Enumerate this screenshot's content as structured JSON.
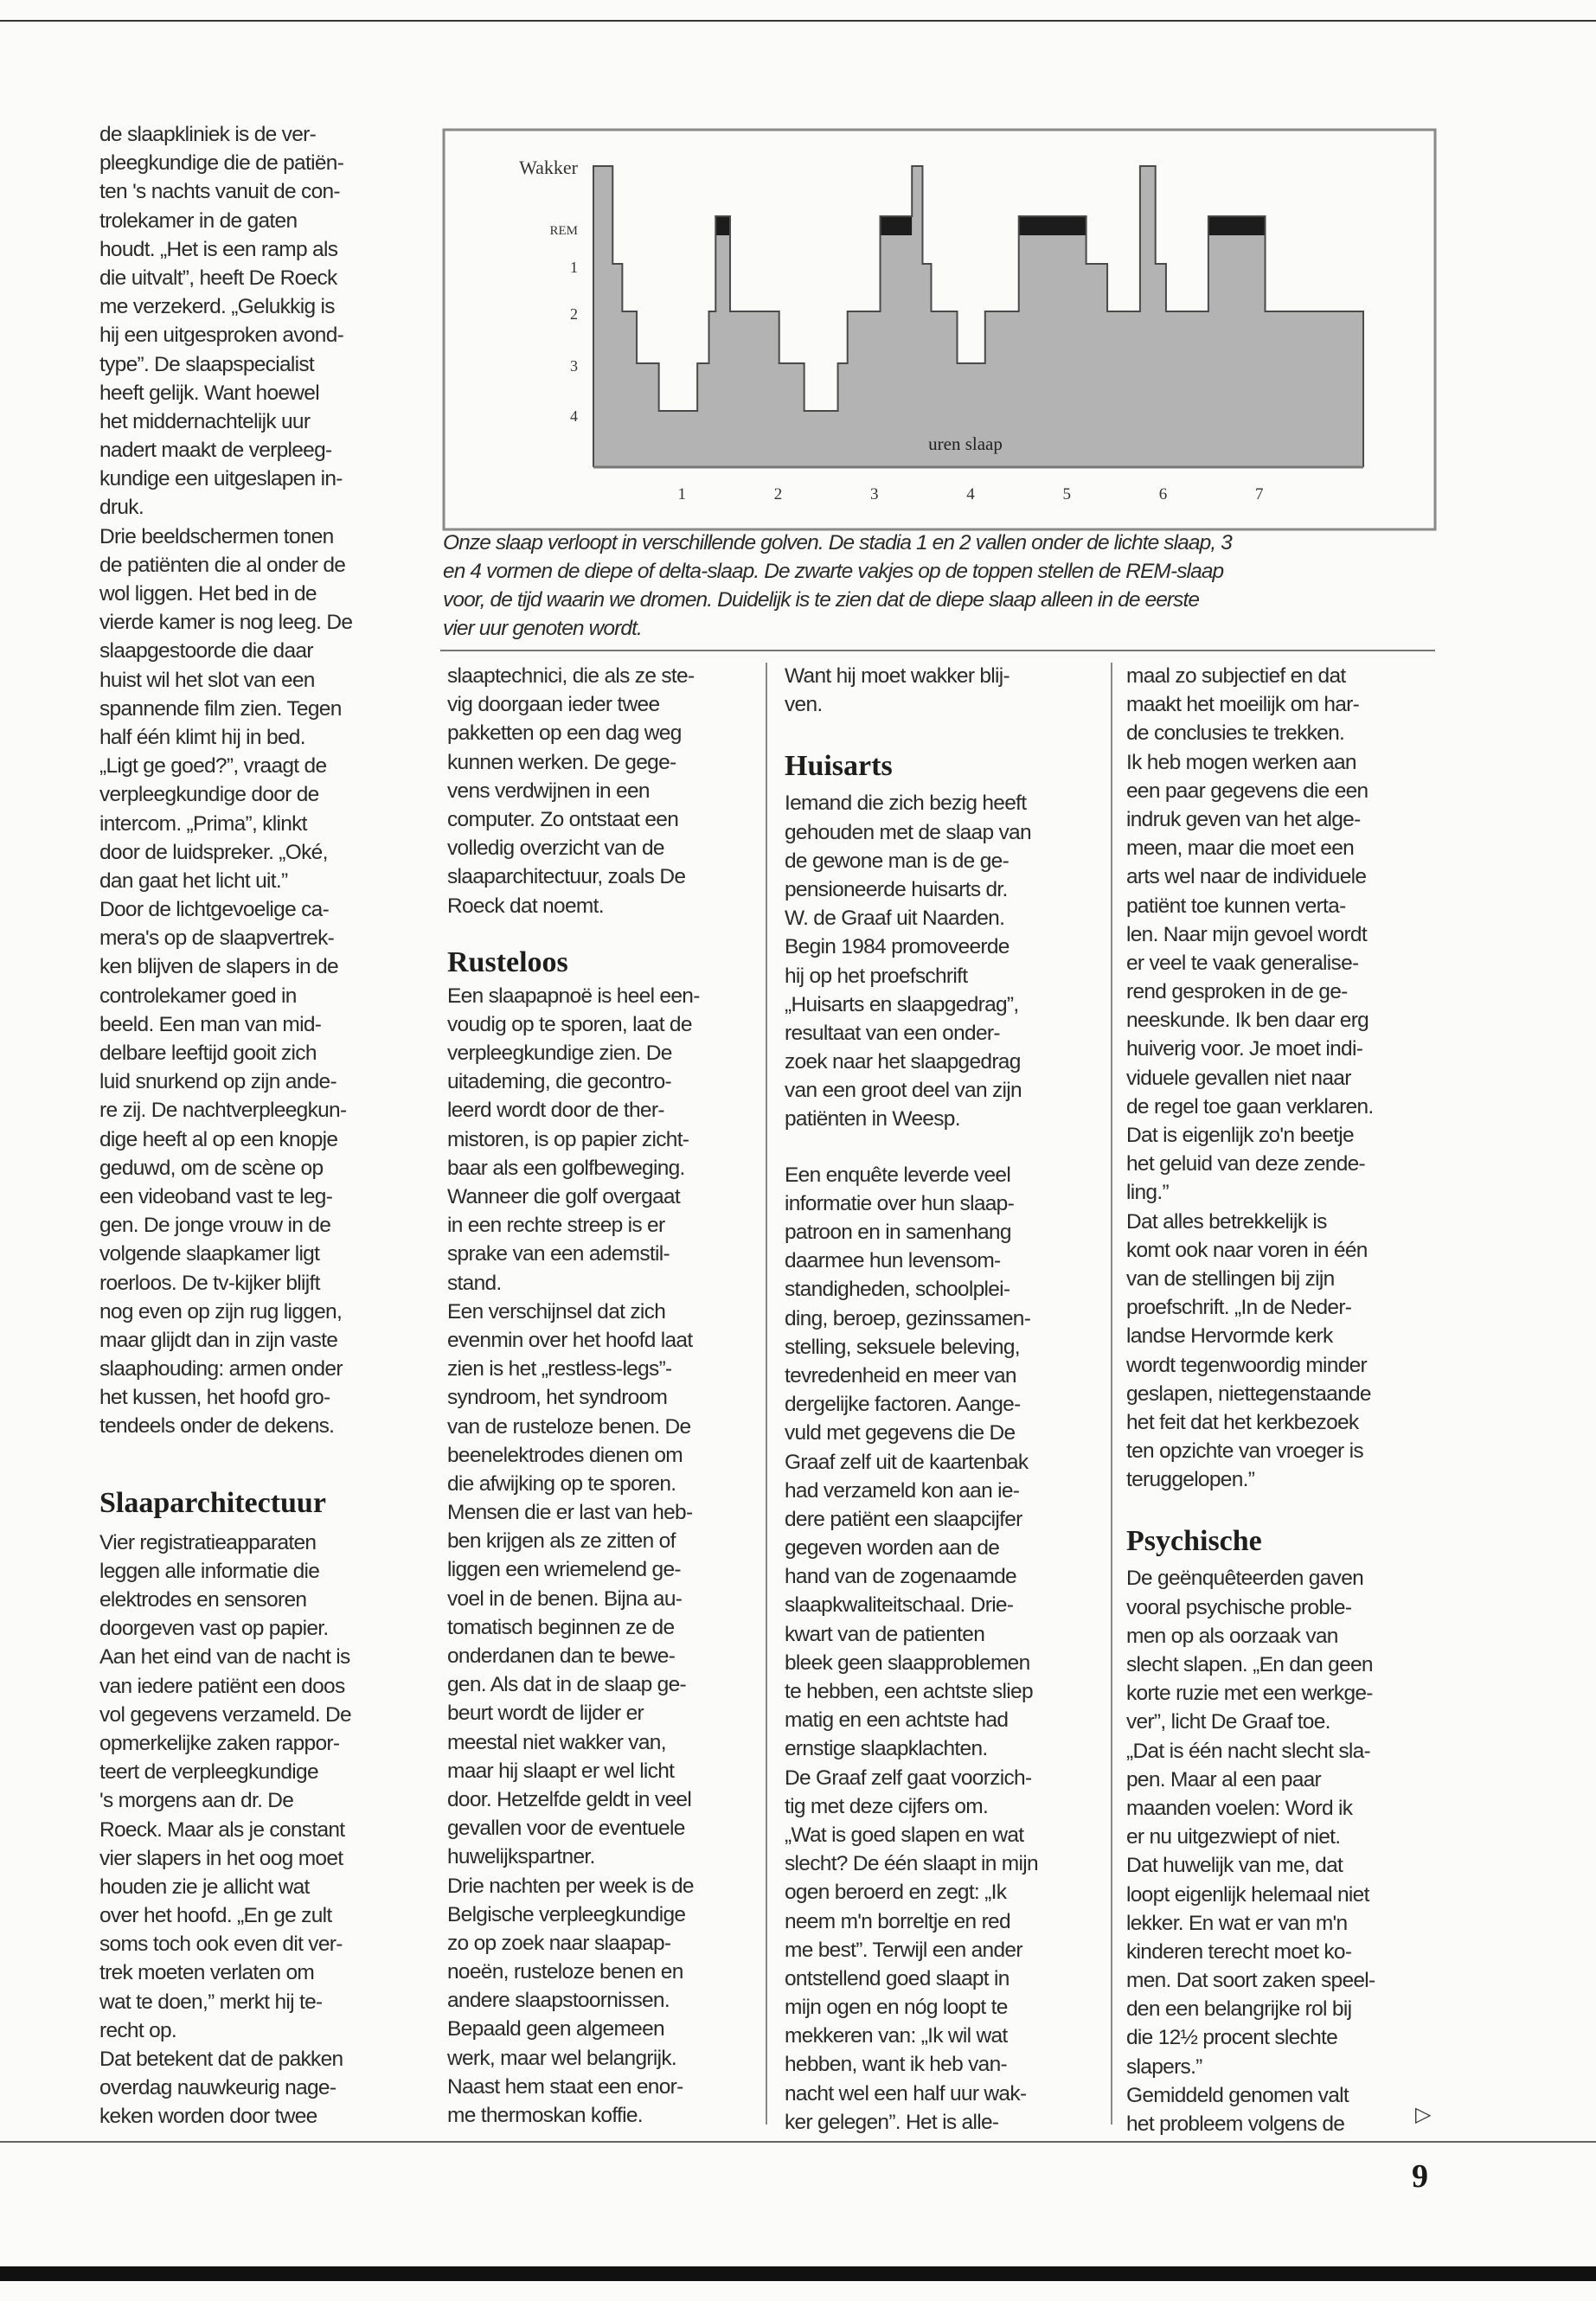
{
  "figure": {
    "caption_lines": [
      "Onze slaap verloopt in verschillende golven. De stadia 1 en 2 vallen onder de lichte slaap, 3",
      "en 4 vormen de diepe of delta-slaap. De zwarte vakjes op de toppen stellen de REM-slaap",
      "voor, de tijd waarin we dromen. Duidelijk is te zien dat de diepe slaap alleen in de eerste",
      "vier uur genoten wordt."
    ]
  },
  "chart_data": {
    "type": "area",
    "xlabel": "uren slaap",
    "ylabel": "",
    "x_ticks": [
      "1",
      "2",
      "3",
      "4",
      "5",
      "6",
      "7"
    ],
    "xlim": [
      0,
      8
    ],
    "y_categories": [
      "Wakker",
      "REM",
      "1",
      "2",
      "3",
      "4"
    ],
    "grid": false,
    "colors": {
      "fill": "#b3b3b3",
      "rem": "#1c1c1c",
      "outline": "#4a4a4a"
    },
    "segments": [
      {
        "start": 0.0,
        "end": 0.2,
        "stage": "Wakker"
      },
      {
        "start": 0.2,
        "end": 0.3,
        "stage": "1"
      },
      {
        "start": 0.3,
        "end": 0.45,
        "stage": "2"
      },
      {
        "start": 0.45,
        "end": 0.68,
        "stage": "3"
      },
      {
        "start": 0.68,
        "end": 1.08,
        "stage": "4"
      },
      {
        "start": 1.08,
        "end": 1.2,
        "stage": "3"
      },
      {
        "start": 1.2,
        "end": 1.27,
        "stage": "2"
      },
      {
        "start": 1.27,
        "end": 1.42,
        "stage": "REM"
      },
      {
        "start": 1.42,
        "end": 1.93,
        "stage": "2"
      },
      {
        "start": 1.93,
        "end": 2.19,
        "stage": "3"
      },
      {
        "start": 2.19,
        "end": 2.54,
        "stage": "4"
      },
      {
        "start": 2.54,
        "end": 2.64,
        "stage": "3"
      },
      {
        "start": 2.64,
        "end": 2.98,
        "stage": "2"
      },
      {
        "start": 2.98,
        "end": 3.31,
        "stage": "REM"
      },
      {
        "start": 3.31,
        "end": 3.42,
        "stage": "Wakker"
      },
      {
        "start": 3.42,
        "end": 3.51,
        "stage": "1"
      },
      {
        "start": 3.51,
        "end": 3.78,
        "stage": "2"
      },
      {
        "start": 3.78,
        "end": 4.07,
        "stage": "3"
      },
      {
        "start": 4.07,
        "end": 4.42,
        "stage": "2"
      },
      {
        "start": 4.42,
        "end": 5.12,
        "stage": "REM"
      },
      {
        "start": 5.12,
        "end": 5.34,
        "stage": "1"
      },
      {
        "start": 5.34,
        "end": 5.68,
        "stage": "2"
      },
      {
        "start": 5.68,
        "end": 5.84,
        "stage": "Wakker"
      },
      {
        "start": 5.84,
        "end": 5.95,
        "stage": "1"
      },
      {
        "start": 5.95,
        "end": 6.39,
        "stage": "2"
      },
      {
        "start": 6.39,
        "end": 6.98,
        "stage": "REM"
      },
      {
        "start": 6.98,
        "end": 8.0,
        "stage": "2"
      }
    ]
  },
  "columns": [
    {
      "blocks": [
        {
          "type": "p",
          "lines": [
            "de slaapkliniek is de ver-",
            "pleegkundige die de patiën-",
            "ten 's nachts vanuit de con-",
            "trolekamer in de gaten",
            "houdt. „Het is een ramp als",
            "die uitvalt”, heeft De Roeck",
            "me verzekerd. „Gelukkig is",
            "hij een uitgesproken avond-",
            "type”. De slaapspecialist",
            "heeft gelijk. Want hoewel",
            "het middernachtelijk uur",
            "nadert maakt de verpleeg-",
            "kundige een uitgeslapen in-",
            "druk.",
            "Drie beeldschermen tonen",
            "de patiënten die al onder de",
            "wol liggen. Het bed in de",
            "vierde kamer is nog leeg. De",
            "slaapgestoorde die daar",
            "huist wil het slot van een",
            "spannende film zien. Tegen",
            "half één klimt hij in bed.",
            "„Ligt ge goed?”, vraagt de",
            "verpleegkundige door de",
            "intercom. „Prima”, klinkt",
            "door de luidspreker. „Oké,",
            "dan gaat het licht uit.”",
            "Door de lichtgevoelige ca-",
            "mera's op de slaapvertrek-",
            "ken blijven de slapers in de",
            "controlekamer goed in",
            "beeld. Een man van mid-",
            "delbare leeftijd gooit zich",
            "luid snurkend op zijn ande-",
            "re zij. De nachtverpleegkun-",
            "dige heeft al op een knopje",
            "geduwd, om de scène op",
            "een videoband vast te leg-",
            "gen. De jonge vrouw in de",
            "volgende slaapkamer ligt",
            "roerloos. De tv-kijker blijft",
            "nog even op zijn rug liggen,",
            "maar glijdt dan in zijn vaste",
            "slaaphouding: armen onder",
            "het kussen, het hoofd gro-",
            "tendeels onder de dekens."
          ]
        },
        {
          "type": "h",
          "text": "Slaaparchitectuur"
        },
        {
          "type": "p",
          "lines": [
            "Vier registratieapparaten",
            "leggen alle informatie die",
            "elektrodes en sensoren",
            "doorgeven vast op papier.",
            "Aan het eind van de nacht is",
            "van iedere patiënt een doos",
            "vol gegevens verzameld. De",
            "opmerkelijke zaken rappor-",
            "teert de verpleegkundige",
            "'s morgens aan dr. De",
            "Roeck. Maar als je constant",
            "vier slapers in het oog moet",
            "houden zie je allicht wat",
            "over het hoofd. „En ge zult",
            "soms toch ook even dit ver-",
            "trek moeten verlaten om",
            "wat te doen,” merkt hij te-",
            "recht op.",
            "Dat betekent dat de pakken",
            "overdag nauwkeurig nage-",
            "keken worden door twee"
          ]
        }
      ]
    },
    {
      "blocks": [
        {
          "type": "p",
          "lines": [
            "slaaptechnici, die als ze ste-",
            "vig doorgaan ieder twee",
            "pakketten op een dag weg",
            "kunnen werken. De gege-",
            "vens verdwijnen in een",
            "computer. Zo ontstaat een",
            "volledig overzicht van de",
            "slaaparchitectuur, zoals De",
            "Roeck dat noemt."
          ]
        },
        {
          "type": "h",
          "text": "Rusteloos"
        },
        {
          "type": "p",
          "lines": [
            "Een slaapapnoë is heel een-",
            "voudig op te sporen, laat de",
            "verpleegkundige zien. De",
            "uitademing, die gecontro-",
            "leerd wordt door de ther-",
            "mistoren, is op papier zicht-",
            "baar als een golfbeweging.",
            "Wanneer die golf overgaat",
            "in een rechte streep is er",
            "sprake van een ademstil-",
            "stand.",
            "Een verschijnsel dat zich",
            "evenmin over het hoofd laat",
            "zien is het „restless-legs”-",
            "syndroom, het syndroom",
            "van de rusteloze benen. De",
            "beenelektrodes dienen om",
            "die afwijking op te sporen.",
            "Mensen die er last van heb-",
            "ben krijgen als ze zitten of",
            "liggen een wriemelend ge-",
            "voel in de benen. Bijna au-",
            "tomatisch beginnen ze de",
            "onderdanen dan te bewe-",
            "gen. Als dat in de slaap ge-",
            "beurt wordt de lijder er",
            "meestal niet wakker van,",
            "maar hij slaapt er wel licht",
            "door. Hetzelfde geldt in veel",
            "gevallen voor de eventuele",
            "huwelijkspartner.",
            "Drie nachten per week is de",
            "Belgische verpleegkundige",
            "zo op zoek naar slaapap-",
            "noeën, rusteloze benen en",
            "andere slaapstoornissen.",
            "Bepaald geen algemeen",
            "werk, maar wel belangrijk.",
            "Naast hem staat een enor-",
            "me thermoskan koffie."
          ]
        }
      ]
    },
    {
      "blocks": [
        {
          "type": "p",
          "lines": [
            "Want hij moet wakker blij-",
            "ven."
          ]
        },
        {
          "type": "h",
          "text": "Huisarts"
        },
        {
          "type": "p",
          "lines": [
            "Iemand die zich bezig heeft",
            "gehouden met de slaap van",
            "de gewone man is de ge-",
            "pensioneerde huisarts dr.",
            "W. de Graaf uit Naarden.",
            "Begin 1984 promoveerde",
            "hij op het proefschrift",
            "„Huisarts en slaapgedrag”,",
            "resultaat van een onder-",
            "zoek naar het slaapgedrag",
            "van een groot deel van zijn",
            "patiënten in Weesp."
          ]
        },
        {
          "type": "p",
          "lines": [
            "Een enquête leverde veel",
            "informatie over hun slaap-",
            "patroon en in samenhang",
            "daarmee hun levensom-",
            "standigheden, schoolplei-",
            "ding, beroep, gezinssamen-",
            "stelling, seksuele beleving,",
            "tevredenheid en meer van",
            "dergelijke factoren. Aange-",
            "vuld met gegevens die De",
            "Graaf zelf uit de kaartenbak",
            "had verzameld kon aan ie-",
            "dere patiënt een slaapcijfer",
            "gegeven worden aan de",
            "hand van de zogenaamde",
            "slaapkwaliteitschaal. Drie-",
            "kwart van de patienten",
            "bleek geen slaapproblemen",
            "te hebben, een achtste sliep",
            "matig en een achtste had",
            "ernstige slaapklachten.",
            "De Graaf zelf gaat voorzich-",
            "tig met deze cijfers om.",
            "„Wat is goed slapen en wat",
            "slecht? De één slaapt in mijn",
            "ogen beroerd en zegt: „Ik",
            "neem m'n borreltje en red",
            "me best”. Terwijl een ander",
            "ontstellend goed slaapt in",
            "mijn ogen en nóg loopt te",
            "mekkeren van: „Ik wil wat",
            "hebben, want ik heb van-",
            "nacht wel een half uur wak-",
            "ker gelegen”. Het is alle-"
          ]
        }
      ]
    },
    {
      "blocks": [
        {
          "type": "p",
          "lines": [
            "maal zo subjectief en dat",
            "maakt het moeilijk om har-",
            "de conclusies te trekken.",
            "Ik heb mogen werken aan",
            "een paar gegevens die een",
            "indruk geven van het alge-",
            "meen, maar die moet een",
            "arts wel naar de individuele",
            "patiënt toe kunnen verta-",
            "len. Naar mijn gevoel wordt",
            "er veel te vaak generalise-",
            "rend gesproken in de ge-",
            "neeskunde. Ik ben daar erg",
            "huiverig voor. Je moet indi-",
            "viduele gevallen niet naar",
            "de regel toe gaan verklaren.",
            "Dat is eigenlijk zo'n beetje",
            "het geluid van deze zende-",
            "ling.”",
            "Dat alles betrekkelijk is",
            "komt ook naar voren in één",
            "van de stellingen bij zijn",
            "proefschrift. „In de Neder-",
            "landse Hervormde kerk",
            "wordt tegenwoordig minder",
            "geslapen, niettegenstaande",
            "het feit dat het kerkbezoek",
            "ten opzichte van vroeger is",
            "teruggelopen.”"
          ]
        },
        {
          "type": "h",
          "text": "Psychische"
        },
        {
          "type": "p",
          "lines": [
            "De geënquêteerden gaven",
            "vooral psychische proble-",
            "men op als oorzaak van",
            "slecht slapen. „En dan geen",
            "korte ruzie met een werkge-",
            "ver”, licht De Graaf toe.",
            "„Dat is één nacht slecht sla-",
            "pen. Maar al een paar",
            "maanden voelen: Word ik",
            "er nu uitgezwiept of niet.",
            "Dat huwelijk van me, dat",
            "loopt eigenlijk helemaal niet",
            "lekker. En wat er van m'n",
            "kinderen terecht moet ko-",
            "men. Dat soort zaken speel-",
            "den een belangrijke rol bij",
            "die 12½ procent slechte",
            "slapers.”",
            "Gemiddeld genomen valt",
            "het probleem volgens de"
          ]
        }
      ]
    }
  ],
  "continue_marker": {
    "icon": "continue-arrow-icon",
    "glyph": "▷"
  },
  "page_number": "9"
}
